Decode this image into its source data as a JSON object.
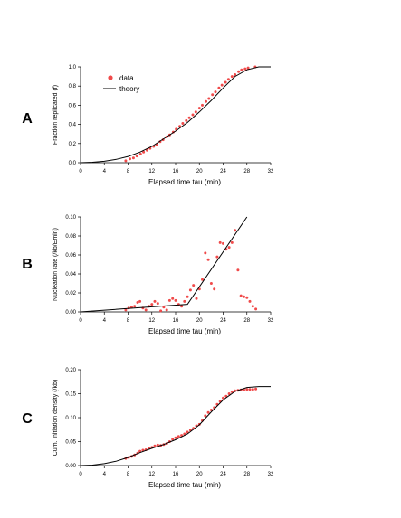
{
  "colors": {
    "data": "#f04a4a",
    "theory": "#000000"
  },
  "chart_data": [
    {
      "type": "scatter",
      "panel": "A",
      "xlabel": "Elapsed time tau (min)",
      "ylabel": "Fraction replicated (f)",
      "xlim": [
        0,
        32
      ],
      "ylim": [
        0,
        1.0
      ],
      "xticks": [
        "0",
        "4",
        "8",
        "12",
        "16",
        "20",
        "24",
        "28",
        "32"
      ],
      "yticks": [
        "0.0",
        "0.2",
        "0.4",
        "0.6",
        "0.8",
        "1.0"
      ],
      "legend": {
        "position": "top-left",
        "entries": [
          "data",
          "theory"
        ]
      },
      "series": [
        {
          "name": "data",
          "kind": "points",
          "x": [
            7.6,
            8.3,
            8.9,
            9.5,
            10.1,
            10.6,
            11.2,
            11.7,
            12.3,
            12.8,
            13.4,
            13.9,
            14.5,
            15.0,
            15.6,
            16.1,
            16.7,
            17.2,
            17.8,
            18.3,
            18.9,
            19.4,
            20.0,
            20.5,
            21.1,
            21.6,
            22.2,
            22.7,
            23.3,
            23.8,
            24.4,
            24.9,
            25.5,
            26.0,
            26.6,
            27.1,
            27.7,
            28.2,
            29.4
          ],
          "y": [
            0.02,
            0.04,
            0.05,
            0.07,
            0.09,
            0.11,
            0.13,
            0.15,
            0.17,
            0.19,
            0.22,
            0.24,
            0.27,
            0.29,
            0.32,
            0.35,
            0.38,
            0.41,
            0.44,
            0.47,
            0.5,
            0.53,
            0.57,
            0.6,
            0.64,
            0.67,
            0.71,
            0.74,
            0.78,
            0.81,
            0.84,
            0.87,
            0.9,
            0.92,
            0.95,
            0.97,
            0.98,
            0.99,
            1.0
          ]
        },
        {
          "name": "theory",
          "kind": "line",
          "x": [
            0,
            2,
            4,
            6,
            8,
            10,
            12,
            14,
            16,
            18,
            20,
            22,
            24,
            26,
            28,
            30,
            32
          ],
          "y": [
            0,
            0.005,
            0.015,
            0.035,
            0.065,
            0.11,
            0.17,
            0.25,
            0.33,
            0.42,
            0.53,
            0.65,
            0.78,
            0.9,
            0.97,
            1.0,
            1.0
          ]
        }
      ]
    },
    {
      "type": "scatter",
      "panel": "B",
      "xlabel": "Elapsed time tau (min)",
      "ylabel": "Nucleation rate (/kb/Emin)",
      "xlim": [
        0,
        32
      ],
      "ylim": [
        0,
        0.1
      ],
      "xticks": [
        "0",
        "4",
        "8",
        "12",
        "16",
        "20",
        "24",
        "28",
        "32"
      ],
      "yticks": [
        "0.00",
        "0.02",
        "0.04",
        "0.06",
        "0.08",
        "0.10"
      ],
      "series": [
        {
          "name": "data",
          "kind": "points",
          "x": [
            7.6,
            8.1,
            8.6,
            9.1,
            9.6,
            10.0,
            10.5,
            11.0,
            11.5,
            12.0,
            12.5,
            13.0,
            13.5,
            14.0,
            14.5,
            15.0,
            15.5,
            16.0,
            16.5,
            17.0,
            17.5,
            18.0,
            18.5,
            19.0,
            19.5,
            20.0,
            20.5,
            21.0,
            21.5,
            22.0,
            22.5,
            23.0,
            23.5,
            24.0,
            24.5,
            25.0,
            25.5,
            26.0,
            26.5,
            27.0,
            27.5,
            28.0,
            28.5,
            29.0,
            29.5
          ],
          "y": [
            0.002,
            0.004,
            0.005,
            0.006,
            0.01,
            0.011,
            0.004,
            0.002,
            0.006,
            0.008,
            0.011,
            0.009,
            0.001,
            0.005,
            0.002,
            0.012,
            0.014,
            0.012,
            0.008,
            0.006,
            0.011,
            0.016,
            0.023,
            0.028,
            0.014,
            0.024,
            0.034,
            0.062,
            0.055,
            0.03,
            0.024,
            0.058,
            0.073,
            0.072,
            0.066,
            0.068,
            0.073,
            0.086,
            0.044,
            0.017,
            0.016,
            0.015,
            0.011,
            0.006,
            0.003
          ]
        },
        {
          "name": "theory",
          "kind": "line",
          "x": [
            0,
            18,
            28
          ],
          "y": [
            0,
            0.008,
            0.1
          ]
        }
      ]
    },
    {
      "type": "scatter",
      "panel": "C",
      "xlabel": "Elapsed time tau (min)",
      "ylabel": "Cum. initiation density (/kb)",
      "xlim": [
        0,
        32
      ],
      "ylim": [
        0,
        0.2
      ],
      "xticks": [
        "0",
        "4",
        "8",
        "12",
        "16",
        "20",
        "24",
        "28",
        "32"
      ],
      "yticks": [
        "0.00",
        "0.05",
        "0.10",
        "0.15",
        "0.20"
      ],
      "series": [
        {
          "name": "data",
          "kind": "points",
          "x": [
            7.6,
            8.1,
            8.6,
            9.1,
            9.6,
            10.0,
            10.5,
            11.0,
            11.5,
            12.0,
            12.5,
            13.0,
            13.5,
            14.0,
            14.5,
            15.0,
            15.5,
            16.0,
            16.5,
            17.0,
            17.5,
            18.0,
            18.5,
            19.0,
            19.5,
            20.0,
            20.5,
            21.0,
            21.5,
            22.0,
            22.5,
            23.0,
            23.5,
            24.0,
            24.5,
            25.0,
            25.5,
            26.0,
            26.5,
            27.0,
            27.5,
            28.0,
            28.5,
            29.0,
            29.5
          ],
          "y": [
            0.015,
            0.017,
            0.019,
            0.022,
            0.026,
            0.03,
            0.032,
            0.033,
            0.036,
            0.038,
            0.041,
            0.043,
            0.042,
            0.044,
            0.046,
            0.05,
            0.055,
            0.058,
            0.061,
            0.063,
            0.066,
            0.07,
            0.074,
            0.078,
            0.083,
            0.086,
            0.094,
            0.104,
            0.111,
            0.116,
            0.121,
            0.128,
            0.134,
            0.141,
            0.145,
            0.15,
            0.154,
            0.156,
            0.157,
            0.158,
            0.158,
            0.159,
            0.159,
            0.159,
            0.16
          ]
        },
        {
          "name": "theory",
          "kind": "line",
          "x": [
            0,
            2,
            4,
            6,
            8,
            10,
            12,
            14,
            16,
            18,
            20,
            22,
            24,
            26,
            28,
            30,
            32
          ],
          "y": [
            0,
            0.001,
            0.004,
            0.009,
            0.017,
            0.027,
            0.036,
            0.044,
            0.054,
            0.066,
            0.085,
            0.112,
            0.137,
            0.155,
            0.163,
            0.165,
            0.165
          ]
        }
      ]
    }
  ]
}
